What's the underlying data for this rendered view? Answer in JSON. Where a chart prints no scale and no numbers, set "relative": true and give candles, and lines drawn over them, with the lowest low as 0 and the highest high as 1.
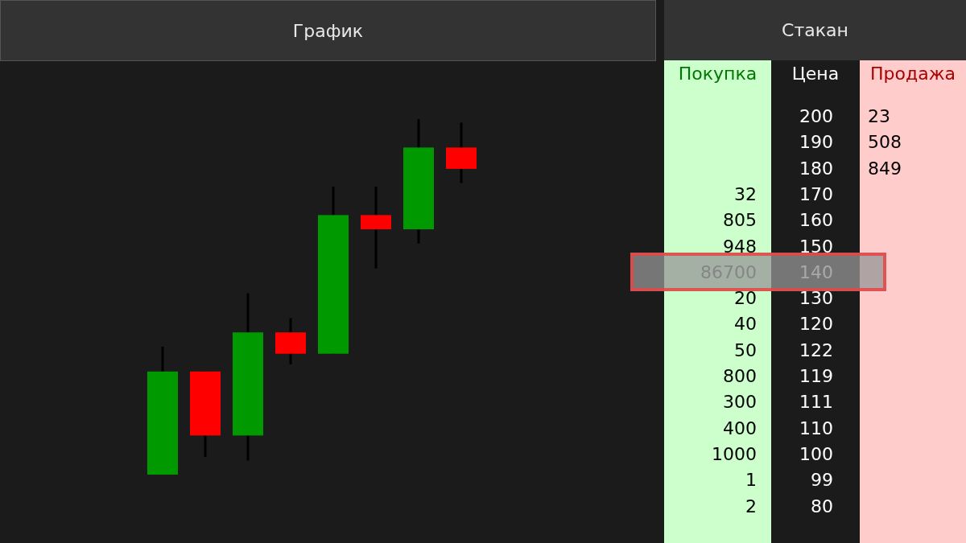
{
  "chart_data": [
    {
      "type": "candlestick",
      "title": "График",
      "relative": true,
      "categories": [
        null,
        null,
        null,
        null,
        null,
        null,
        null,
        null
      ],
      "ohlc": [
        [
          0,
          0.36,
          0,
          0.29
        ],
        [
          0.29,
          0.29,
          0.05,
          0.11
        ],
        [
          0.11,
          0.51,
          0.04,
          0.4
        ],
        [
          0.4,
          0.44,
          0.31,
          0.34
        ],
        [
          0.34,
          0.81,
          0.34,
          0.73
        ],
        [
          0.73,
          0.81,
          0.58,
          0.69
        ],
        [
          0.69,
          1,
          0.65,
          0.92
        ],
        [
          0.92,
          0.99,
          0.82,
          0.86
        ]
      ],
      "colors": [
        "#009900",
        "#ff0000",
        "#009900",
        "#ff0000",
        "#009900",
        "#ff0000",
        "#009900",
        "#ff0000"
      ]
    },
    {
      "type": "heatmap",
      "title": "Стакан",
      "ylabel": "Цена",
      "categories": [
        "Покупка",
        "Продажа"
      ],
      "colors": [
        "#ccffcc",
        "#ffcccc"
      ],
      "data_labels": true,
      "y_categories": [
        "200",
        "190",
        "180",
        "170",
        "160",
        "150",
        "140",
        "130",
        "120",
        "122",
        "119",
        "111",
        "110",
        "100",
        "99",
        "80"
      ],
      "cells": [
        [
          null,
          23
        ],
        [
          null,
          508
        ],
        [
          null,
          849
        ],
        [
          32,
          null
        ],
        [
          805,
          null
        ],
        [
          948,
          null
        ],
        [
          86700,
          null
        ],
        [
          20,
          null
        ],
        [
          40,
          null
        ],
        [
          50,
          null
        ],
        [
          800,
          null
        ],
        [
          300,
          null
        ],
        [
          400,
          null
        ],
        [
          1000,
          null
        ],
        [
          1,
          null
        ],
        [
          2,
          null
        ]
      ]
    }
  ]
}
